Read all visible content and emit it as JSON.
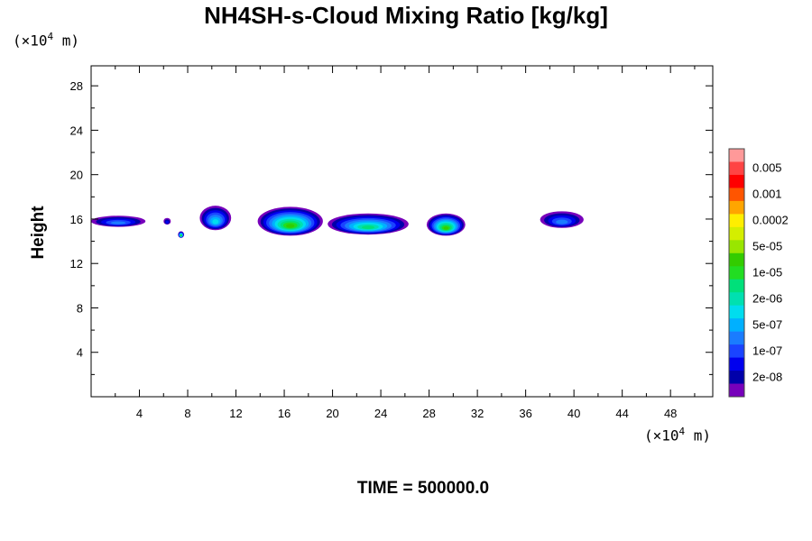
{
  "title": "NH4SH-s-Cloud Mixing Ratio [kg/kg]",
  "y_unit": {
    "prefix": "(×10",
    "exp": "4",
    "suffix": " m)"
  },
  "x_unit": {
    "prefix": "(×10",
    "exp": "4",
    "suffix": " m)"
  },
  "time_label": "TIME = 500000.0",
  "chart_data": {
    "type": "heatmap",
    "title": "NH4SH-s-Cloud Mixing Ratio [kg/kg]",
    "xlabel": "",
    "ylabel": "Height",
    "xlim": [
      0,
      51.5
    ],
    "ylim": [
      0,
      29.8
    ],
    "x_ticks": [
      4,
      8,
      12,
      16,
      20,
      24,
      28,
      32,
      36,
      40,
      44,
      48
    ],
    "y_ticks": [
      4,
      8,
      12,
      16,
      20,
      24,
      28
    ],
    "colorbar": {
      "labels": [
        "0.005",
        "0.001",
        "0.0002",
        "5e-05",
        "1e-05",
        "2e-06",
        "5e-07",
        "1e-07",
        "2e-08"
      ],
      "colors_top_to_bottom": [
        "#ff9999",
        "#ff4444",
        "#ff0000",
        "#ff5500",
        "#ffa500",
        "#ffee00",
        "#d4ee00",
        "#99e600",
        "#33cc00",
        "#22dd22",
        "#00e07a",
        "#00e0b0",
        "#00ddee",
        "#00b0ff",
        "#1a7cff",
        "#1a44ff",
        "#0000ee",
        "#0000aa",
        "#7700bb"
      ]
    },
    "cloud_patches": [
      {
        "x0": 0.0,
        "x1": 4.5,
        "base": 15.3,
        "top": 16.3,
        "peak": "5e-07"
      },
      {
        "x0": 6.0,
        "x1": 6.6,
        "base": 15.5,
        "top": 16.1,
        "peak": "1e-07"
      },
      {
        "x0": 7.2,
        "x1": 7.7,
        "base": 14.3,
        "top": 14.9,
        "peak": "5e-05"
      },
      {
        "x0": 9.0,
        "x1": 11.6,
        "base": 15.0,
        "top": 17.2,
        "peak": "2e-06"
      },
      {
        "x0": 13.8,
        "x1": 19.2,
        "base": 14.5,
        "top": 17.1,
        "peak": "5e-05"
      },
      {
        "x0": 19.6,
        "x1": 26.3,
        "base": 14.6,
        "top": 16.5,
        "peak": "1e-05"
      },
      {
        "x0": 27.8,
        "x1": 31.0,
        "base": 14.5,
        "top": 16.5,
        "peak": "5e-05"
      },
      {
        "x0": 37.2,
        "x1": 40.8,
        "base": 15.2,
        "top": 16.7,
        "peak": "5e-07"
      }
    ]
  }
}
